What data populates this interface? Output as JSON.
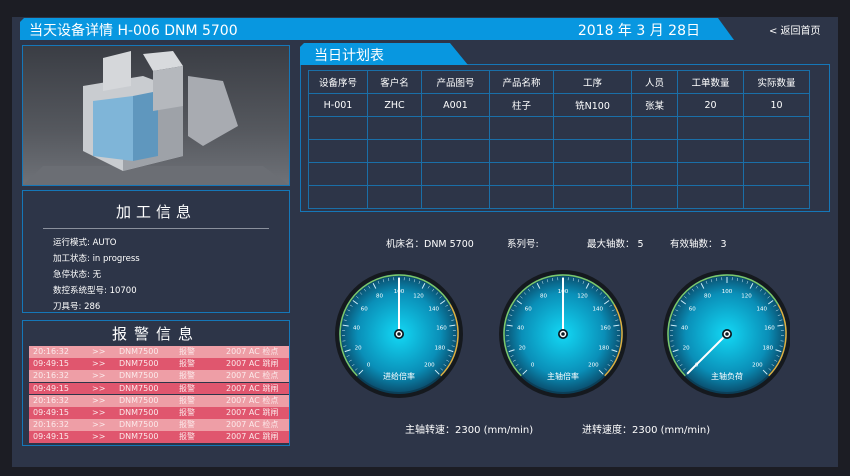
{
  "header": {
    "title": "当天设备详情  H-006   DNM 5700",
    "date": "2018 年 3 月  28日",
    "back": "< 返回首页"
  },
  "machining": {
    "title": "加工信息",
    "rows": [
      "运行模式:   AUTO",
      "加工状态:  in progress",
      "急停状态:  无",
      "数控系统型号:  10700",
      "刀具号:  286"
    ]
  },
  "alarm": {
    "title": "报警信息",
    "rows": [
      [
        "20:16:32",
        ">>",
        "DNM7500",
        "报警",
        "2007  AC 检点"
      ],
      [
        "09:49:15",
        ">>",
        "DNM7500",
        "报警",
        "2007  AC 跳闸"
      ],
      [
        "20:16:32",
        ">>",
        "DNM7500",
        "报警",
        "2007  AC 检点"
      ],
      [
        "09:49:15",
        ">>",
        "DNM7500",
        "报警",
        "2007  AC 跳闸"
      ],
      [
        "20:16:32",
        ">>",
        "DNM7500",
        "报警",
        "2007  AC 检点"
      ],
      [
        "09:49:15",
        ">>",
        "DNM7500",
        "报警",
        "2007  AC 跳闸"
      ],
      [
        "20:16:32",
        ">>",
        "DNM7500",
        "报警",
        "2007  AC 检点"
      ],
      [
        "09:49:15",
        ">>",
        "DNM7500",
        "报警",
        "2007  AC 跳闸"
      ]
    ],
    "colors": [
      "#ee9ea6",
      "#e0566e"
    ]
  },
  "plan": {
    "title": "当日计划表",
    "columns": [
      "设备序号",
      "客户名",
      "产品图号",
      "产品名称",
      "工序",
      "人员",
      "工单数量",
      "实际数量"
    ],
    "rows": [
      [
        "H-001",
        "ZHC",
        "A001",
        "柱子",
        "铣N100",
        "张某",
        "20",
        "10"
      ],
      [
        "",
        "",
        "",
        "",
        "",
        "",
        "",
        ""
      ],
      [
        "",
        "",
        "",
        "",
        "",
        "",
        "",
        ""
      ],
      [
        "",
        "",
        "",
        "",
        "",
        "",
        "",
        ""
      ],
      [
        "",
        "",
        "",
        "",
        "",
        "",
        "",
        ""
      ]
    ]
  },
  "machine": {
    "name": "机床名：DNM 5700",
    "series": "系列号:",
    "max_axes": "最大轴数：  5",
    "valid_axes": "有效轴数：  3"
  },
  "gauges": {
    "min": 0,
    "max": 200,
    "ticks": [
      "0",
      "20",
      "40",
      "60",
      "80",
      "100",
      "120",
      "140",
      "160",
      "180",
      "200"
    ],
    "items": [
      {
        "label": "进给倍率",
        "value": 100
      },
      {
        "label": "主轴倍率",
        "value": 100
      },
      {
        "label": "主轴负荷",
        "value": 0
      }
    ]
  },
  "bottom": {
    "spindle_speed": "主轴转速：2300  (mm/min)",
    "feed_speed": "进转速度：2300  (mm/min)"
  }
}
